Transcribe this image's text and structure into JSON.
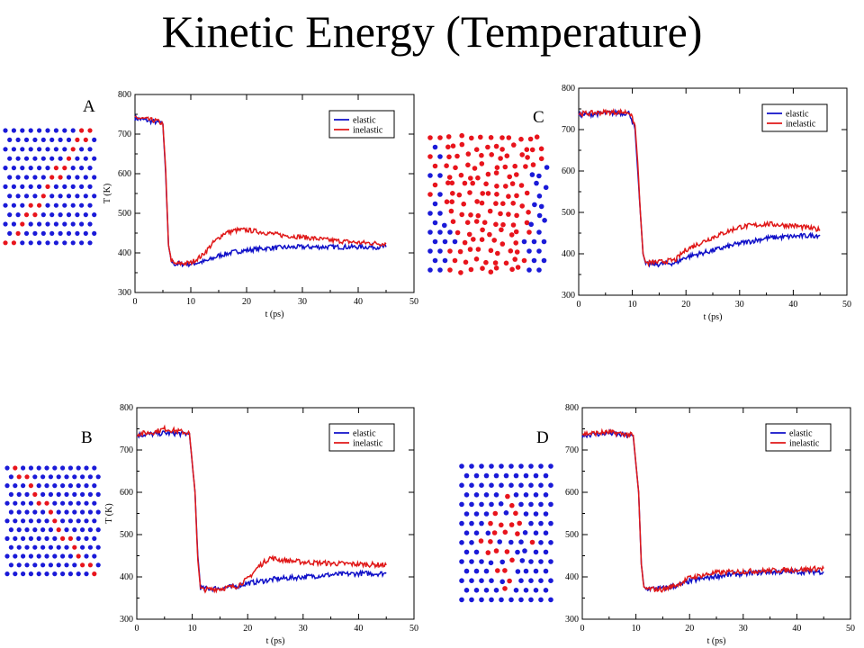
{
  "title": "Kinetic Energy (Temperature)",
  "colors": {
    "elastic": "#1010c8",
    "inelastic": "#e01818",
    "frame": "#000000"
  },
  "chart_data": [
    {
      "panel": "A",
      "type": "line",
      "xlabel": "t (ps)",
      "ylabel": "T (K)",
      "xlim": [
        0,
        50
      ],
      "ylim": [
        300,
        800
      ],
      "xticks": [
        "0",
        "10",
        "20",
        "30",
        "40",
        "50"
      ],
      "yticks": [
        "300",
        "400",
        "500",
        "600",
        "700",
        "800"
      ],
      "legend": "top-right",
      "series": [
        {
          "name": "elastic",
          "color": "#1010c8",
          "points": [
            [
              0,
              740
            ],
            [
              4,
              730
            ],
            [
              5,
              725
            ],
            [
              5.5,
              600
            ],
            [
              6,
              420
            ],
            [
              6.5,
              380
            ],
            [
              7,
              372
            ],
            [
              10,
              372
            ],
            [
              13,
              380
            ],
            [
              15,
              393
            ],
            [
              18,
              403
            ],
            [
              22,
              410
            ],
            [
              25,
              413
            ],
            [
              30,
              415
            ],
            [
              35,
              415
            ],
            [
              40,
              415
            ],
            [
              45,
              415
            ]
          ]
        },
        {
          "name": "inelastic",
          "color": "#e01818",
          "points": [
            [
              0,
              742
            ],
            [
              4,
              733
            ],
            [
              5,
              725
            ],
            [
              5.5,
              610
            ],
            [
              6,
              420
            ],
            [
              6.5,
              382
            ],
            [
              7,
              372
            ],
            [
              10,
              375
            ],
            [
              12,
              393
            ],
            [
              14,
              425
            ],
            [
              16,
              450
            ],
            [
              18,
              457
            ],
            [
              20,
              458
            ],
            [
              23,
              452
            ],
            [
              26,
              445
            ],
            [
              30,
              440
            ],
            [
              35,
              432
            ],
            [
              40,
              426
            ],
            [
              45,
              423
            ]
          ]
        }
      ]
    },
    {
      "panel": "B",
      "type": "line",
      "xlabel": "t (ps)",
      "ylabel": "T (K)",
      "xlim": [
        0,
        50
      ],
      "ylim": [
        300,
        800
      ],
      "xticks": [
        "0",
        "10",
        "20",
        "30",
        "40",
        "50"
      ],
      "yticks": [
        "300",
        "400",
        "500",
        "600",
        "700",
        "800"
      ],
      "legend": "top-right",
      "series": [
        {
          "name": "elastic",
          "color": "#1010c8",
          "points": [
            [
              0,
              735
            ],
            [
              5,
              740
            ],
            [
              9.5,
              738
            ],
            [
              10.5,
              600
            ],
            [
              11,
              450
            ],
            [
              11.5,
              375
            ],
            [
              12,
              372
            ],
            [
              15,
              373
            ],
            [
              18,
              378
            ],
            [
              20,
              385
            ],
            [
              25,
              395
            ],
            [
              30,
              400
            ],
            [
              35,
              405
            ],
            [
              40,
              408
            ],
            [
              45,
              408
            ]
          ]
        },
        {
          "name": "inelastic",
          "color": "#e01818",
          "points": [
            [
              0,
              738
            ],
            [
              3,
              742
            ],
            [
              5,
              750
            ],
            [
              9.5,
              740
            ],
            [
              10.5,
              600
            ],
            [
              11,
              440
            ],
            [
              11.5,
              372
            ],
            [
              12,
              370
            ],
            [
              15,
              372
            ],
            [
              18,
              378
            ],
            [
              20,
              395
            ],
            [
              22,
              425
            ],
            [
              24,
              445
            ],
            [
              26,
              440
            ],
            [
              30,
              435
            ],
            [
              35,
              432
            ],
            [
              40,
              430
            ],
            [
              45,
              428
            ]
          ]
        }
      ]
    },
    {
      "panel": "C",
      "type": "line",
      "xlabel": "t (ps)",
      "ylabel": "",
      "xlim": [
        0,
        50
      ],
      "ylim": [
        300,
        800
      ],
      "xticks": [
        "0",
        "10",
        "20",
        "30",
        "40",
        "50"
      ],
      "yticks": [
        "300",
        "400",
        "500",
        "600",
        "700",
        "800"
      ],
      "legend": "top-right",
      "series": [
        {
          "name": "elastic",
          "color": "#1010c8",
          "points": [
            [
              0,
              735
            ],
            [
              5,
              740
            ],
            [
              9.5,
              740
            ],
            [
              10.5,
              700
            ],
            [
              11,
              600
            ],
            [
              11.5,
              500
            ],
            [
              12,
              400
            ],
            [
              12.5,
              375
            ],
            [
              15,
              375
            ],
            [
              18,
              378
            ],
            [
              20,
              392
            ],
            [
              25,
              408
            ],
            [
              30,
              425
            ],
            [
              35,
              438
            ],
            [
              40,
              442
            ],
            [
              45,
              445
            ]
          ]
        },
        {
          "name": "inelastic",
          "color": "#e01818",
          "points": [
            [
              0,
              738
            ],
            [
              5,
              742
            ],
            [
              9.5,
              742
            ],
            [
              10.5,
              710
            ],
            [
              11,
              620
            ],
            [
              11.5,
              500
            ],
            [
              12,
              400
            ],
            [
              12.5,
              378
            ],
            [
              15,
              380
            ],
            [
              18,
              385
            ],
            [
              20,
              410
            ],
            [
              25,
              440
            ],
            [
              30,
              465
            ],
            [
              35,
              472
            ],
            [
              40,
              468
            ],
            [
              45,
              458
            ]
          ]
        }
      ]
    },
    {
      "panel": "D",
      "type": "line",
      "xlabel": "t (ps)",
      "ylabel": "",
      "xlim": [
        0,
        50
      ],
      "ylim": [
        300,
        800
      ],
      "xticks": [
        "0",
        "10",
        "20",
        "30",
        "40",
        "50"
      ],
      "yticks": [
        "300",
        "400",
        "500",
        "600",
        "700",
        "800"
      ],
      "legend": "top-right",
      "series": [
        {
          "name": "elastic",
          "color": "#1010c8",
          "points": [
            [
              0,
              735
            ],
            [
              5,
              740
            ],
            [
              9.5,
              732
            ],
            [
              10.5,
              600
            ],
            [
              11,
              430
            ],
            [
              11.5,
              375
            ],
            [
              12,
              372
            ],
            [
              15,
              373
            ],
            [
              18,
              380
            ],
            [
              20,
              390
            ],
            [
              25,
              402
            ],
            [
              30,
              408
            ],
            [
              35,
              412
            ],
            [
              40,
              412
            ],
            [
              45,
              412
            ]
          ]
        },
        {
          "name": "inelastic",
          "color": "#e01818",
          "points": [
            [
              0,
              738
            ],
            [
              5,
              742
            ],
            [
              9.5,
              735
            ],
            [
              10.5,
              600
            ],
            [
              11,
              430
            ],
            [
              11.5,
              372
            ],
            [
              12,
              372
            ],
            [
              15,
              370
            ],
            [
              18,
              383
            ],
            [
              20,
              398
            ],
            [
              25,
              410
            ],
            [
              30,
              413
            ],
            [
              35,
              415
            ],
            [
              40,
              417
            ],
            [
              45,
              420
            ]
          ]
        }
      ]
    }
  ]
}
